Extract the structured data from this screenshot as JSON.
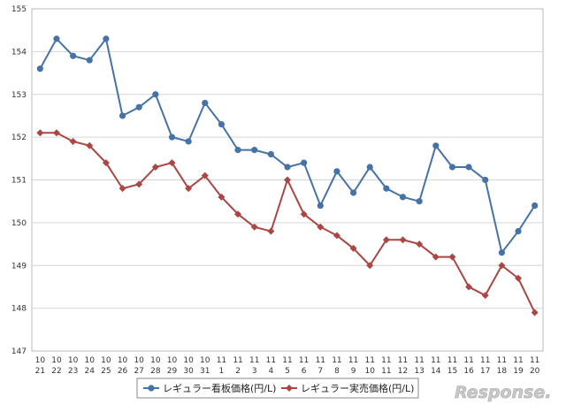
{
  "chart_data": {
    "type": "line",
    "x": [
      [
        "10",
        "21"
      ],
      [
        "10",
        "22"
      ],
      [
        "10",
        "23"
      ],
      [
        "10",
        "24"
      ],
      [
        "10",
        "25"
      ],
      [
        "10",
        "26"
      ],
      [
        "10",
        "27"
      ],
      [
        "10",
        "28"
      ],
      [
        "10",
        "29"
      ],
      [
        "10",
        "30"
      ],
      [
        "10",
        "31"
      ],
      [
        "11",
        "1"
      ],
      [
        "11",
        "2"
      ],
      [
        "11",
        "3"
      ],
      [
        "11",
        "4"
      ],
      [
        "11",
        "5"
      ],
      [
        "11",
        "6"
      ],
      [
        "11",
        "7"
      ],
      [
        "11",
        "8"
      ],
      [
        "11",
        "9"
      ],
      [
        "11",
        "10"
      ],
      [
        "11",
        "11"
      ],
      [
        "11",
        "12"
      ],
      [
        "11",
        "13"
      ],
      [
        "11",
        "14"
      ],
      [
        "11",
        "15"
      ],
      [
        "11",
        "16"
      ],
      [
        "11",
        "17"
      ],
      [
        "11",
        "18"
      ],
      [
        "11",
        "19"
      ],
      [
        "11",
        "20"
      ]
    ],
    "ylim": [
      147,
      155
    ],
    "yticks": [
      "147",
      "148",
      "149",
      "150",
      "151",
      "152",
      "153",
      "154",
      "155"
    ],
    "grid": true,
    "legend_position": "bottom",
    "series": [
      {
        "name": "レギュラー看板価格(円/L)",
        "color": "#4572A7",
        "marker": "circle",
        "values": [
          153.6,
          154.3,
          153.9,
          153.8,
          154.3,
          152.5,
          152.7,
          153.0,
          152.0,
          151.9,
          152.8,
          152.3,
          151.7,
          151.7,
          151.6,
          151.3,
          151.4,
          150.4,
          151.2,
          150.7,
          151.3,
          150.8,
          150.6,
          150.5,
          151.8,
          151.3,
          151.3,
          151.0,
          149.3,
          149.8,
          150.4
        ]
      },
      {
        "name": "レギュラー実売価格(円/L)",
        "color": "#AA4643",
        "marker": "diamond",
        "values": [
          152.1,
          152.1,
          151.9,
          151.8,
          151.4,
          150.8,
          150.9,
          151.3,
          151.4,
          150.8,
          151.1,
          150.6,
          150.2,
          149.9,
          149.8,
          151.0,
          150.2,
          149.9,
          149.7,
          149.4,
          149.0,
          149.6,
          149.6,
          149.5,
          149.2,
          149.2,
          148.5,
          148.3,
          149.0,
          148.7,
          147.9
        ]
      }
    ]
  },
  "watermark": {
    "text": "Response."
  }
}
